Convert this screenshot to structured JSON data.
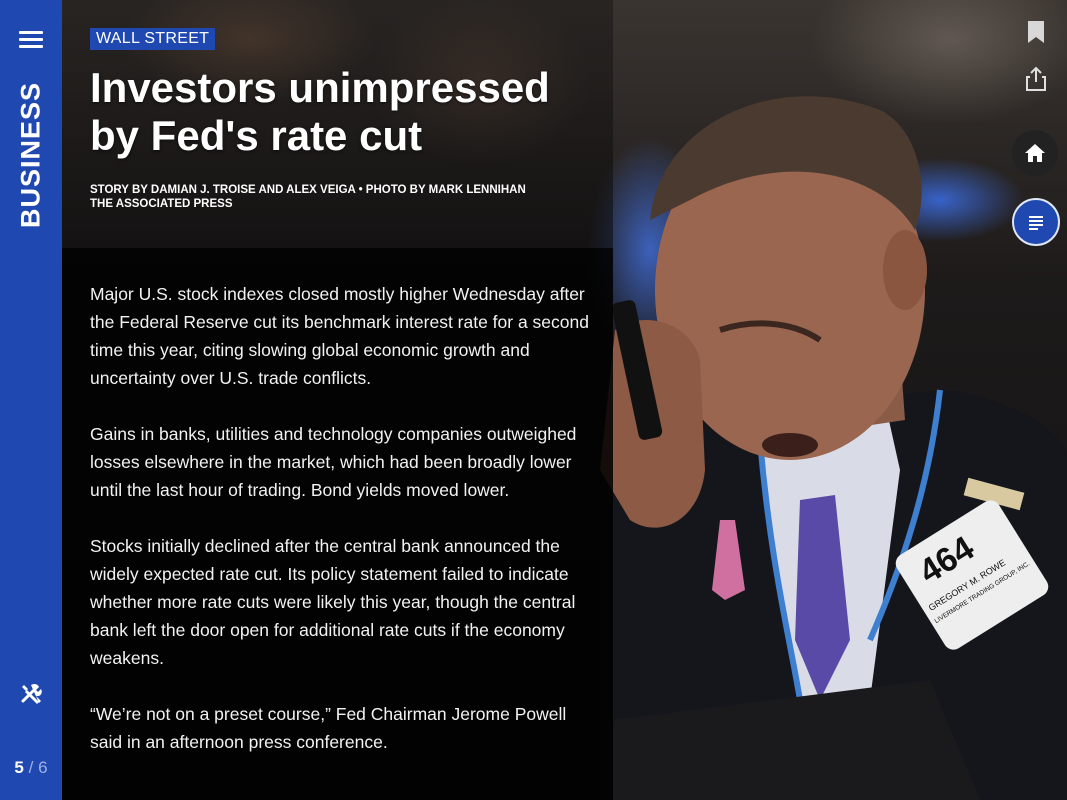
{
  "rail": {
    "section": "BUSINESS",
    "page_current": "5",
    "page_separator": "/",
    "page_total": "6"
  },
  "article": {
    "kicker": "WALL STREET",
    "headline_line1": "Investors unimpressed",
    "headline_line2": "by Fed's rate cut",
    "byline_line1": "STORY BY DAMIAN J. TROISE AND ALEX VEIGA • PHOTO BY MARK LENNIHAN",
    "byline_line2": "THE ASSOCIATED PRESS",
    "paragraphs": [
      "Major U.S. stock indexes closed mostly higher Wednesday after the Federal Reserve cut its benchmark interest rate for a second time this year, citing slowing global economic growth and uncertainty over U.S. trade conflicts.",
      "Gains in banks, utilities and technology companies outweighed losses elsewhere in the market, which had been broadly lower until the last hour of trading. Bond yields moved lower.",
      "Stocks initially declined after the central bank announced the widely expected rate cut. Its policy statement failed to indicate whether more rate cuts were likely this year, though the central bank left the door open for additional rate cuts if the economy weakens.",
      "“We’re not on a preset course,” Fed Chairman Jerome Powell said in an afternoon press conference."
    ]
  },
  "photo": {
    "badge_number": "464",
    "badge_name": "GREGORY M. ROWE",
    "badge_company": "LIVERMORE TRADING GROUP, INC."
  },
  "icons": {
    "menu": "hamburger-menu-icon",
    "tools": "tools-icon",
    "bookmark": "bookmark-icon",
    "share": "share-icon",
    "home": "home-icon",
    "toc": "table-of-contents-icon"
  },
  "colors": {
    "brand_blue": "#1f48b0",
    "text": "#ffffff"
  }
}
